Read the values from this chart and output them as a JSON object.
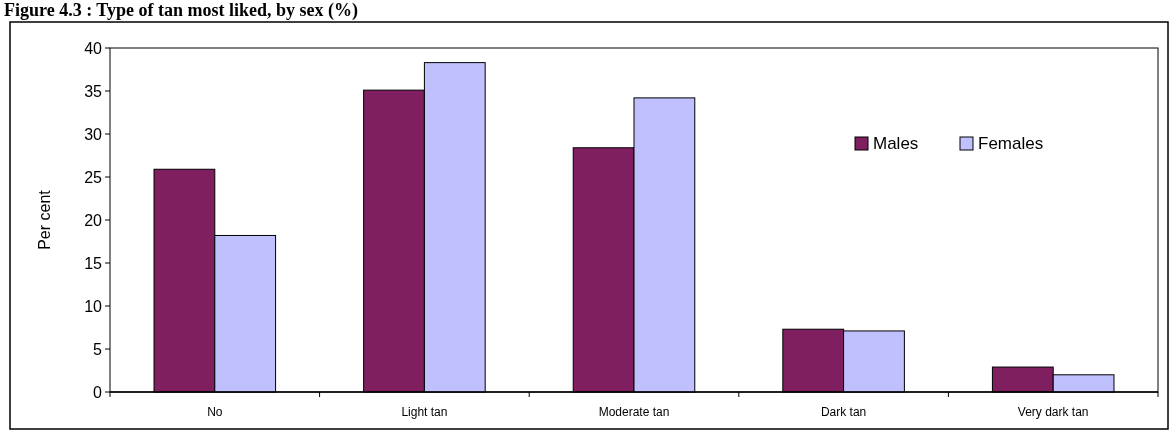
{
  "chart_data": {
    "type": "bar",
    "title": "Figure 4.3 : Type of tan most liked, by sex (%)",
    "ylabel": "Per cent",
    "categories": [
      "No",
      "Light tan",
      "Moderate tan",
      "Dark tan",
      "Very dark tan"
    ],
    "series": [
      {
        "name": "Males",
        "color": "#7f1f5f",
        "values": [
          25.9,
          35.1,
          28.4,
          7.3,
          2.9
        ]
      },
      {
        "name": "Females",
        "color": "#c0c0ff",
        "values": [
          18.2,
          38.3,
          34.2,
          7.1,
          2.0
        ]
      }
    ],
    "ylim": [
      0,
      40
    ],
    "yticks": [
      0,
      5,
      10,
      15,
      20,
      25,
      30,
      35,
      40
    ],
    "grid": false,
    "legend": "top right"
  }
}
